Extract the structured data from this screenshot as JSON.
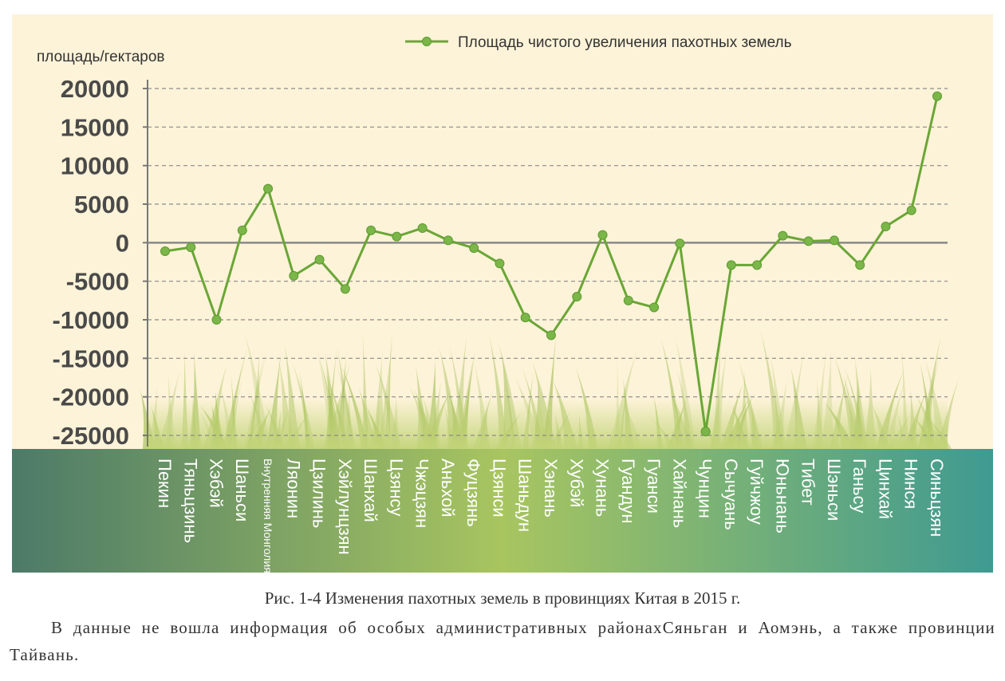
{
  "chart_data": {
    "type": "line",
    "ylabel": "площадь/гектаров",
    "ylim": [
      -25000,
      20000
    ],
    "yticks": [
      20000,
      15000,
      10000,
      5000,
      0,
      -5000,
      -10000,
      -15000,
      -20000,
      -25000
    ],
    "grid": true,
    "legend_position": "top",
    "categories": [
      "Пекин",
      "Тяньцзинь",
      "Хэбэй",
      "Шаньси",
      "Внутренняя Монголия",
      "Ляонин",
      "Цзилинь",
      "Хэйлунцзян",
      "Шанхай",
      "Цзянсу",
      "Чжэцзян",
      "Аньхой",
      "Фуцзянь",
      "Цзянси",
      "Шаньдун",
      "Хэнань",
      "Хубэй",
      "Хунань",
      "Гуандун",
      "Гуанси",
      "Хайнань",
      "Чунцин",
      "Сычуань",
      "Гуйчжоу",
      "Юньнань",
      "Тибет",
      "Шэньси",
      "Ганьсу",
      "Цинхай",
      "Нинся",
      "Синьцзян"
    ],
    "series": [
      {
        "name": "Площадь чистого увеличения пахотных земель",
        "color": "#6aa636",
        "values": [
          -1100,
          -600,
          -10000,
          1600,
          7000,
          -4300,
          -2200,
          -6000,
          1600,
          800,
          1900,
          300,
          -700,
          -2700,
          -9700,
          -12000,
          -7000,
          1000,
          -7500,
          -8400,
          -100,
          -24500,
          -2900,
          -2900,
          900,
          200,
          300,
          -2900,
          2100,
          4200,
          19000
        ]
      }
    ],
    "colors": {
      "background": "#fdf3d8",
      "gridline": "#8a8a8a",
      "band_left": "#4c7a68",
      "band_mid": "#a8c560",
      "band_right": "#3f9a91",
      "grass": "#a9c25f"
    }
  },
  "caption": "Рис. 1-4 Изменения пахотных земель в провинциях Китая в 2015 г.",
  "note": "В данные не вошла информация об особых административных районахСяньган и Аомэнь, а также провинции Тайвань."
}
